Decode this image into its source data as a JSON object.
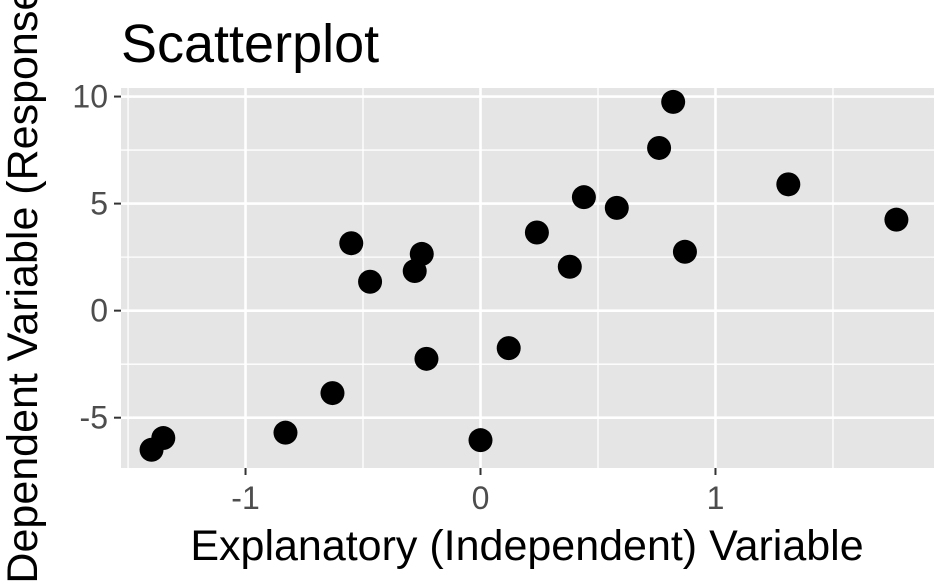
{
  "chart_data": {
    "type": "scatter",
    "title": "Scatterplot",
    "xlabel": "Explanatory (Independent) Variable",
    "ylabel": "Dependent Variable (Response)",
    "xlim": [
      -1.53,
      1.93
    ],
    "ylim": [
      -7.35,
      10.4
    ],
    "x_ticks": [
      {
        "value": -1,
        "label": "-1"
      },
      {
        "value": 0,
        "label": "0"
      },
      {
        "value": 1,
        "label": "1"
      }
    ],
    "y_ticks": [
      {
        "value": -5,
        "label": "-5"
      },
      {
        "value": 0,
        "label": "0"
      },
      {
        "value": 5,
        "label": "5"
      },
      {
        "value": 10,
        "label": "10"
      }
    ],
    "x_minor": [
      -1.5,
      -0.5,
      0.5,
      1.5
    ],
    "y_minor": [
      -7.5,
      -2.5,
      2.5,
      7.5
    ],
    "grid": true,
    "legend": "none",
    "colors": {
      "panel": "#e5e5e5",
      "grid": "#ffffff",
      "point": "#000000",
      "tick_text": "#4d4d4d",
      "text": "#000000"
    },
    "points": [
      {
        "x": -1.4,
        "y": -6.5
      },
      {
        "x": -1.35,
        "y": -5.95
      },
      {
        "x": -0.83,
        "y": -5.7
      },
      {
        "x": -0.63,
        "y": -3.85
      },
      {
        "x": -0.55,
        "y": 3.15
      },
      {
        "x": -0.47,
        "y": 1.35
      },
      {
        "x": -0.28,
        "y": 1.85
      },
      {
        "x": -0.25,
        "y": 2.65
      },
      {
        "x": -0.23,
        "y": -2.25
      },
      {
        "x": 0.0,
        "y": -6.05
      },
      {
        "x": 0.12,
        "y": -1.75
      },
      {
        "x": 0.24,
        "y": 3.65
      },
      {
        "x": 0.38,
        "y": 2.05
      },
      {
        "x": 0.44,
        "y": 5.3
      },
      {
        "x": 0.58,
        "y": 4.8
      },
      {
        "x": 0.76,
        "y": 7.6
      },
      {
        "x": 0.82,
        "y": 9.75
      },
      {
        "x": 0.87,
        "y": 2.75
      },
      {
        "x": 1.31,
        "y": 5.9
      },
      {
        "x": 1.77,
        "y": 4.25
      }
    ]
  }
}
